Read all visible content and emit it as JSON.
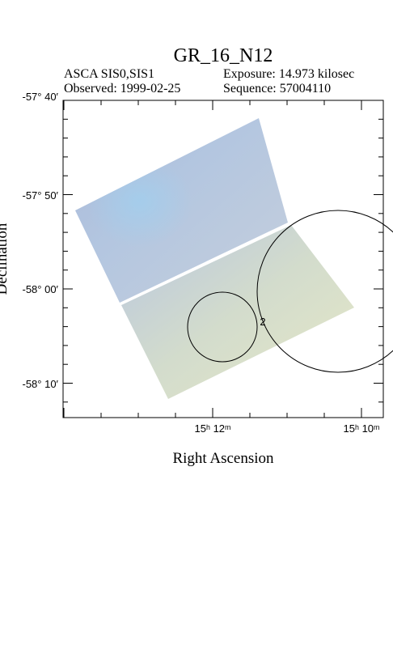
{
  "header": {
    "title": "GR_16_N12",
    "instrument": "ASCA SIS0,SIS1",
    "exposure": "Exposure: 14.973 kilosec",
    "observed": "Observed: 1999-02-25",
    "sequence": "Sequence: 57004110"
  },
  "axes": {
    "y_label": "Declination",
    "x_label": "Right Ascension",
    "y_ticks": [
      "-57° 40′",
      "-57° 50′",
      "-58° 00′",
      "-58° 10′"
    ],
    "x_ticks": [
      "15ʰ 12ᵐ",
      "15ʰ 10ᵐ"
    ]
  },
  "sources": [
    {
      "label": "2"
    }
  ]
}
